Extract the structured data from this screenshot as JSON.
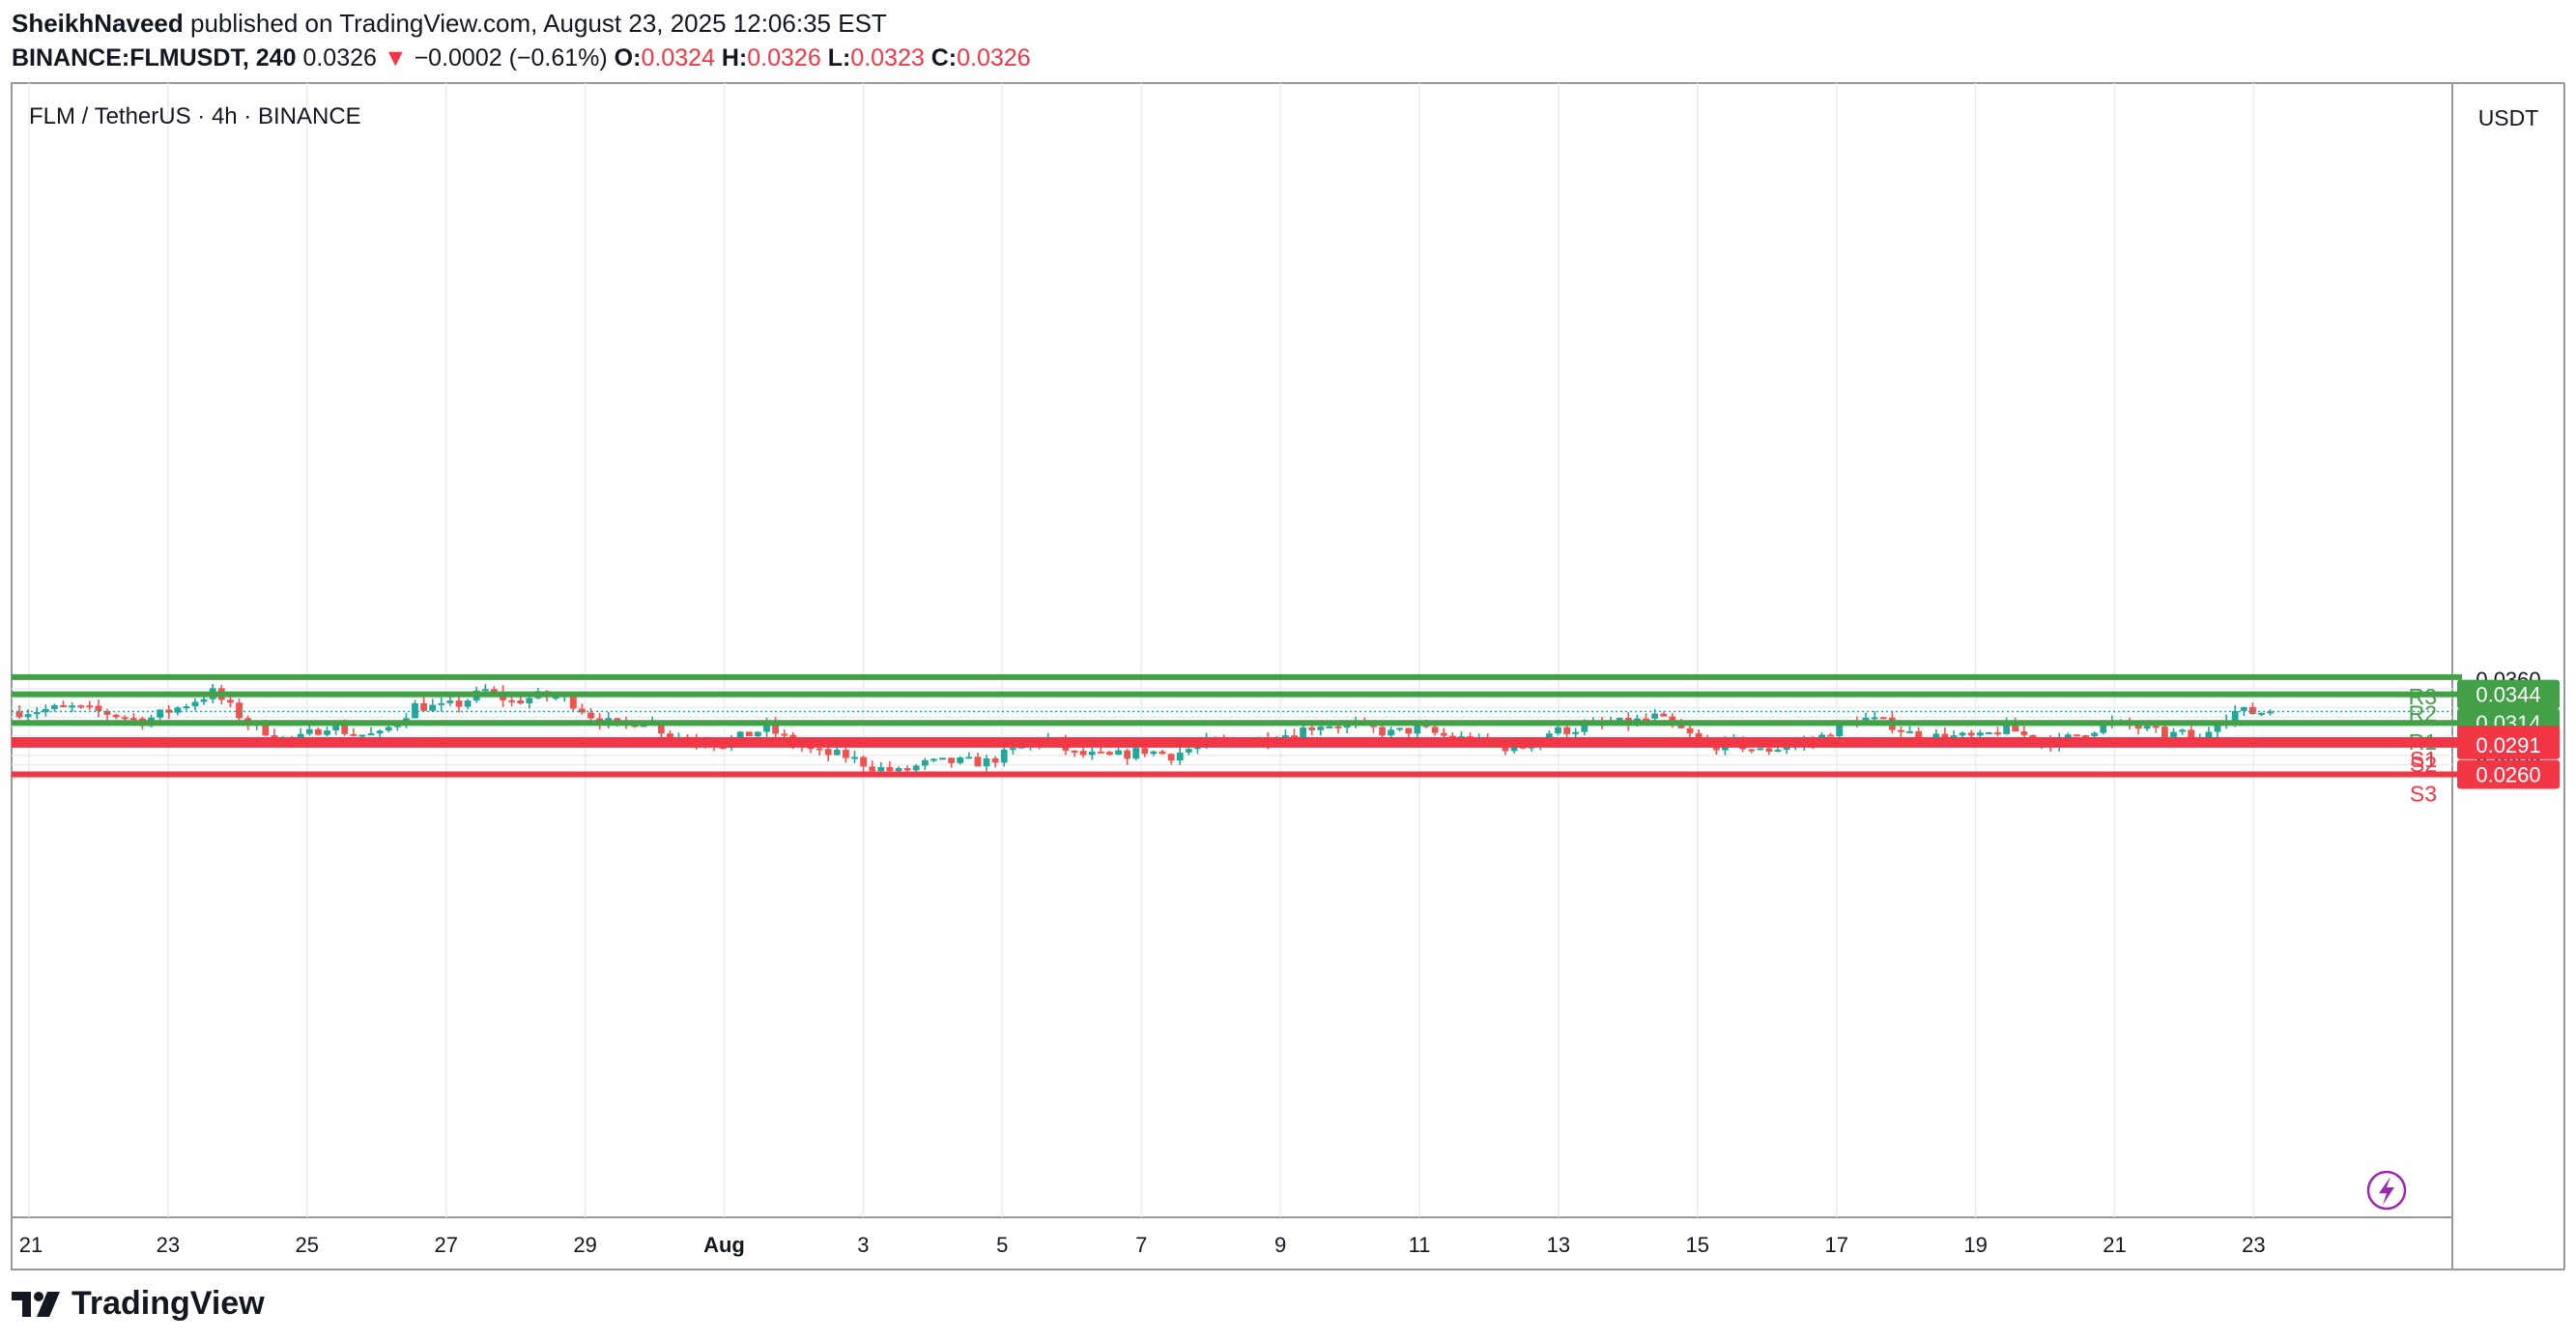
{
  "header": {
    "author": "SheikhNaveed",
    "published_text": "published on TradingView.com, August 23, 2025 12:06:35 EST",
    "symbol": "BINANCE:FLMUSDT, 240",
    "last": "0.0326",
    "change": "−0.0002 (−0.61%)",
    "o_label": "O:",
    "o_value": "0.0324",
    "h_label": "H:",
    "h_value": "0.0326",
    "l_label": "L:",
    "l_value": "0.0323",
    "c_label": "C:",
    "c_value": "0.0326"
  },
  "footer": {
    "brand": "TradingView"
  },
  "colors": {
    "up": "#26a69a",
    "down": "#ef5350",
    "resistance": "#43a047",
    "support": "#f23645"
  },
  "chart_data": {
    "type": "candlestick",
    "title": "FLM / TetherUS · 4h · BINANCE",
    "currency": "USDT",
    "ylim": [
      0.0252,
      0.0363
    ],
    "y_ticks": [
      "0.0270",
      "0.0280",
      "0.0290",
      "0.0300",
      "0.0310",
      "0.0320",
      "0.0330",
      "0.0340",
      "0.0350",
      "0.0360"
    ],
    "x_labels": [
      "21",
      "23",
      "25",
      "27",
      "29",
      "Aug",
      "3",
      "5",
      "7",
      "9",
      "11",
      "13",
      "15",
      "17",
      "19",
      "21",
      "23"
    ],
    "last_price": 0.0326,
    "levels": [
      {
        "name": "R3",
        "value": 0.0362,
        "label": "",
        "kind": "resistance"
      },
      {
        "name": "R2",
        "value": 0.0344,
        "label": "0.0344",
        "kind": "resistance"
      },
      {
        "name": "R1",
        "value": 0.0314,
        "label": "0.0314",
        "kind": "resistance"
      },
      {
        "name": "S1",
        "value": 0.0296,
        "label": "0.0296",
        "kind": "support"
      },
      {
        "name": "S2",
        "value": 0.0291,
        "label": "0.0291",
        "kind": "support"
      },
      {
        "name": "S3",
        "value": 0.026,
        "label": "0.0260",
        "kind": "support"
      }
    ],
    "anchors": [
      [
        0,
        0.0326
      ],
      [
        6,
        0.033
      ],
      [
        10,
        0.0324
      ],
      [
        14,
        0.0316
      ],
      [
        18,
        0.033
      ],
      [
        22,
        0.0346
      ],
      [
        26,
        0.0314
      ],
      [
        29,
        0.0302
      ],
      [
        31,
        0.0293
      ],
      [
        35,
        0.0312
      ],
      [
        38,
        0.0302
      ],
      [
        41,
        0.0301
      ],
      [
        45,
        0.0332
      ],
      [
        48,
        0.033
      ],
      [
        50,
        0.0334
      ],
      [
        53,
        0.0348
      ],
      [
        56,
        0.0336
      ],
      [
        59,
        0.0342
      ],
      [
        62,
        0.0341
      ],
      [
        65,
        0.0322
      ],
      [
        68,
        0.031
      ],
      [
        71,
        0.0318
      ],
      [
        74,
        0.0302
      ],
      [
        77,
        0.0296
      ],
      [
        80,
        0.0292
      ],
      [
        85,
        0.0309
      ],
      [
        88,
        0.0292
      ],
      [
        91,
        0.0282
      ],
      [
        94,
        0.0279
      ],
      [
        97,
        0.0268
      ],
      [
        100,
        0.0262
      ],
      [
        103,
        0.0271
      ],
      [
        106,
        0.0273
      ],
      [
        110,
        0.0273
      ],
      [
        114,
        0.0288
      ],
      [
        117,
        0.0296
      ],
      [
        120,
        0.0281
      ],
      [
        124,
        0.0278
      ],
      [
        128,
        0.0285
      ],
      [
        131,
        0.028
      ],
      [
        135,
        0.0293
      ],
      [
        140,
        0.0295
      ],
      [
        144,
        0.0302
      ],
      [
        148,
        0.0313
      ],
      [
        152,
        0.0311
      ],
      [
        156,
        0.0303
      ],
      [
        159,
        0.0308
      ],
      [
        162,
        0.03
      ],
      [
        165,
        0.0296
      ],
      [
        168,
        0.0289
      ],
      [
        171,
        0.0289
      ],
      [
        174,
        0.0304
      ],
      [
        177,
        0.0308
      ],
      [
        180,
        0.0312
      ],
      [
        183,
        0.0314
      ],
      [
        186,
        0.032
      ],
      [
        189,
        0.0306
      ],
      [
        192,
        0.029
      ],
      [
        195,
        0.0293
      ],
      [
        198,
        0.0284
      ],
      [
        201,
        0.029
      ],
      [
        204,
        0.0294
      ],
      [
        207,
        0.0311
      ],
      [
        210,
        0.0318
      ],
      [
        213,
        0.0312
      ],
      [
        216,
        0.0298
      ],
      [
        219,
        0.03
      ],
      [
        223,
        0.0298
      ],
      [
        226,
        0.031
      ],
      [
        229,
        0.0296
      ],
      [
        232,
        0.0294
      ],
      [
        235,
        0.0305
      ],
      [
        238,
        0.0314
      ],
      [
        241,
        0.0309
      ],
      [
        244,
        0.0302
      ],
      [
        246,
        0.0302
      ],
      [
        248,
        0.0296
      ],
      [
        250,
        0.0318
      ],
      [
        252,
        0.0326
      ],
      [
        254,
        0.0325
      ],
      [
        256,
        0.0326
      ]
    ]
  }
}
